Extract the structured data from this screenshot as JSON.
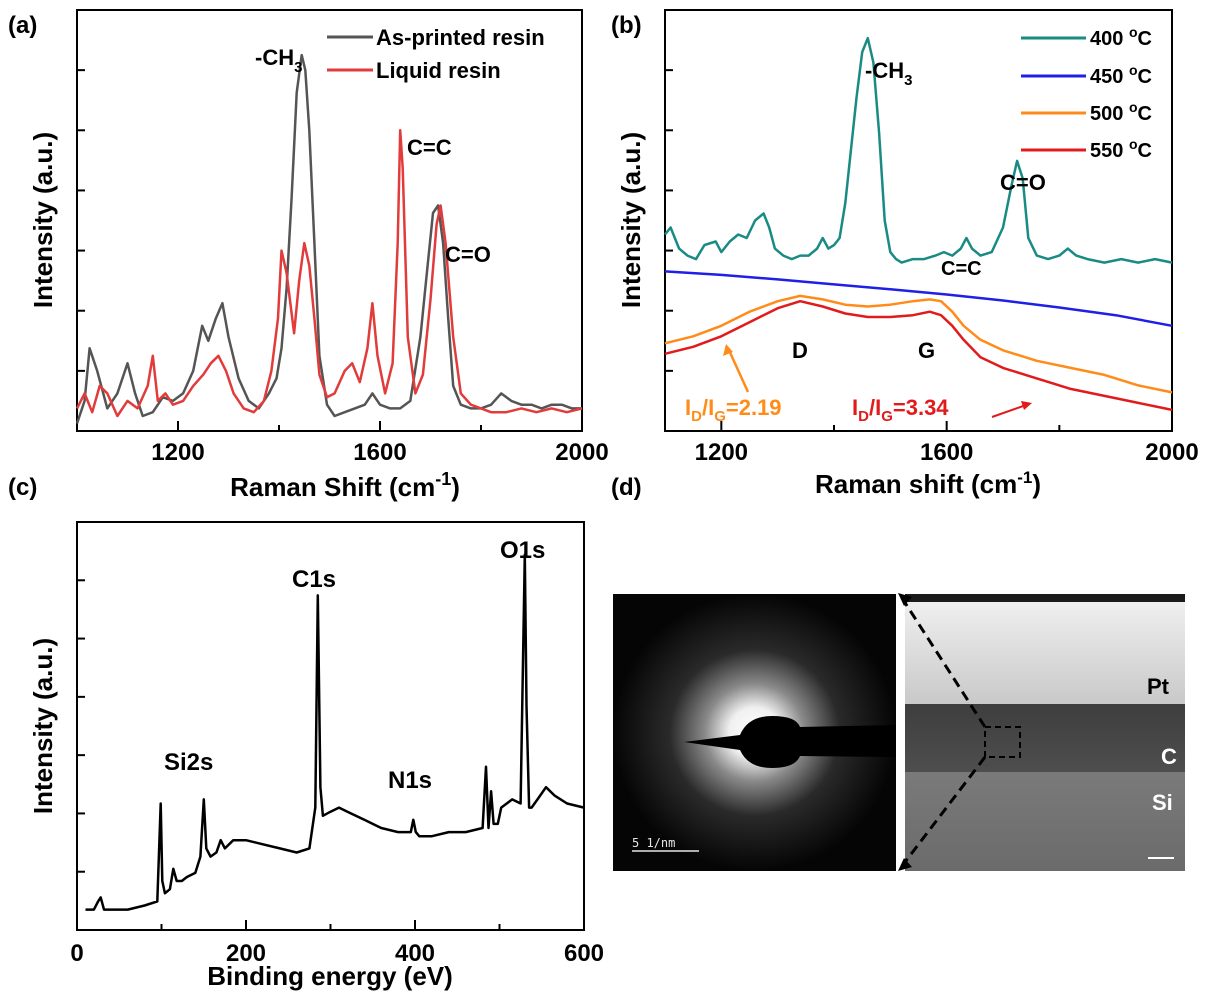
{
  "panels": {
    "a": "(a)",
    "b": "(b)",
    "c": "(c)",
    "d": "(d)"
  },
  "chart_data": [
    {
      "id": "a",
      "type": "line",
      "xlabel": "Raman Shift (cm",
      "xlabel_sup": "-1",
      "xlabel_end": ")",
      "ylabel": "Intensity (a.u.)",
      "xlim": [
        1000,
        2000
      ],
      "ylim": [
        0,
        1.12
      ],
      "xticks": [
        1200,
        1600,
        2000
      ],
      "xtick_labels": [
        "1200",
        "1600",
        "2000"
      ],
      "legend_position": "top-right",
      "series": [
        {
          "name": "As-printed resin",
          "color": "#555555",
          "x": [
            1000,
            1015,
            1025,
            1040,
            1060,
            1080,
            1100,
            1115,
            1130,
            1150,
            1170,
            1190,
            1210,
            1230,
            1248,
            1260,
            1275,
            1288,
            1300,
            1320,
            1340,
            1360,
            1380,
            1395,
            1405,
            1415,
            1425,
            1435,
            1445,
            1452,
            1460,
            1470,
            1480,
            1495,
            1510,
            1530,
            1550,
            1570,
            1585,
            1600,
            1620,
            1640,
            1660,
            1680,
            1695,
            1705,
            1715,
            1725,
            1735,
            1745,
            1760,
            1780,
            1800,
            1820,
            1840,
            1860,
            1880,
            1900,
            1920,
            1940,
            1960,
            1980,
            2000
          ],
          "y": [
            0.02,
            0.08,
            0.22,
            0.16,
            0.06,
            0.1,
            0.18,
            0.1,
            0.04,
            0.05,
            0.09,
            0.08,
            0.1,
            0.16,
            0.28,
            0.24,
            0.3,
            0.34,
            0.25,
            0.14,
            0.08,
            0.06,
            0.1,
            0.14,
            0.22,
            0.38,
            0.62,
            0.9,
            1.0,
            0.96,
            0.8,
            0.5,
            0.2,
            0.07,
            0.04,
            0.05,
            0.06,
            0.07,
            0.1,
            0.07,
            0.06,
            0.06,
            0.08,
            0.25,
            0.45,
            0.58,
            0.6,
            0.5,
            0.3,
            0.12,
            0.07,
            0.06,
            0.06,
            0.07,
            0.1,
            0.08,
            0.07,
            0.07,
            0.06,
            0.07,
            0.07,
            0.06,
            0.06
          ]
        },
        {
          "name": "Liquid resin",
          "color": "#e23b3b",
          "x": [
            1000,
            1015,
            1030,
            1045,
            1060,
            1080,
            1100,
            1120,
            1140,
            1150,
            1160,
            1175,
            1190,
            1210,
            1230,
            1250,
            1265,
            1280,
            1295,
            1310,
            1330,
            1350,
            1370,
            1385,
            1398,
            1405,
            1415,
            1430,
            1440,
            1450,
            1460,
            1470,
            1480,
            1495,
            1510,
            1530,
            1545,
            1560,
            1575,
            1585,
            1595,
            1610,
            1625,
            1635,
            1640,
            1645,
            1655,
            1670,
            1685,
            1700,
            1712,
            1720,
            1730,
            1745,
            1760,
            1780,
            1800,
            1820,
            1850,
            1880,
            1910,
            1940,
            1970,
            2000
          ],
          "y": [
            0.06,
            0.1,
            0.05,
            0.12,
            0.1,
            0.04,
            0.08,
            0.06,
            0.12,
            0.2,
            0.08,
            0.1,
            0.07,
            0.08,
            0.12,
            0.15,
            0.18,
            0.2,
            0.16,
            0.1,
            0.06,
            0.05,
            0.08,
            0.16,
            0.3,
            0.48,
            0.42,
            0.26,
            0.4,
            0.5,
            0.44,
            0.3,
            0.15,
            0.09,
            0.1,
            0.16,
            0.18,
            0.13,
            0.22,
            0.34,
            0.2,
            0.1,
            0.18,
            0.5,
            0.8,
            0.7,
            0.25,
            0.1,
            0.15,
            0.35,
            0.55,
            0.6,
            0.5,
            0.25,
            0.1,
            0.07,
            0.06,
            0.05,
            0.05,
            0.06,
            0.05,
            0.06,
            0.05,
            0.06
          ]
        }
      ],
      "annotations": [
        "-CH",
        "3",
        "C=C",
        "C=O"
      ]
    },
    {
      "id": "b",
      "type": "line",
      "xlabel": "Raman shift (cm",
      "xlabel_sup": "-1",
      "xlabel_end": ")",
      "ylabel": "Intensity (a.u.)",
      "xlim": [
        1100,
        2000
      ],
      "ylim": [
        0,
        1.2
      ],
      "xticks": [
        1200,
        1600,
        2000
      ],
      "xtick_labels": [
        "1200",
        "1600",
        "2000"
      ],
      "legend_position": "top-right",
      "series": [
        {
          "name": "400 ",
          "unit": "oC",
          "color": "#1a8a85",
          "x": [
            1100,
            1110,
            1125,
            1140,
            1155,
            1170,
            1190,
            1200,
            1215,
            1230,
            1245,
            1260,
            1275,
            1285,
            1295,
            1310,
            1325,
            1340,
            1355,
            1370,
            1380,
            1390,
            1400,
            1410,
            1420,
            1430,
            1440,
            1450,
            1460,
            1470,
            1480,
            1490,
            1500,
            1510,
            1520,
            1540,
            1560,
            1580,
            1595,
            1610,
            1625,
            1635,
            1645,
            1660,
            1680,
            1700,
            1715,
            1725,
            1735,
            1745,
            1760,
            1780,
            1800,
            1815,
            1830,
            1850,
            1880,
            1910,
            1940,
            1970,
            2000
          ],
          "y": [
            0.56,
            0.58,
            0.52,
            0.5,
            0.49,
            0.53,
            0.54,
            0.51,
            0.54,
            0.56,
            0.55,
            0.6,
            0.62,
            0.58,
            0.52,
            0.5,
            0.49,
            0.5,
            0.5,
            0.52,
            0.55,
            0.52,
            0.53,
            0.55,
            0.65,
            0.8,
            0.95,
            1.08,
            1.12,
            1.05,
            0.85,
            0.6,
            0.51,
            0.49,
            0.48,
            0.49,
            0.49,
            0.5,
            0.51,
            0.5,
            0.52,
            0.55,
            0.52,
            0.5,
            0.51,
            0.58,
            0.7,
            0.77,
            0.72,
            0.55,
            0.5,
            0.49,
            0.5,
            0.52,
            0.5,
            0.49,
            0.48,
            0.49,
            0.48,
            0.49,
            0.48
          ]
        },
        {
          "name": "450 ",
          "unit": "oC",
          "color": "#1f1fe6",
          "x": [
            1100,
            1200,
            1300,
            1400,
            1500,
            1600,
            1700,
            1800,
            1900,
            2000
          ],
          "y": [
            0.455,
            0.445,
            0.432,
            0.418,
            0.404,
            0.389,
            0.372,
            0.352,
            0.33,
            0.3
          ]
        },
        {
          "name": "500 ",
          "unit": "oC",
          "color": "#ff8c1a",
          "x": [
            1100,
            1150,
            1200,
            1250,
            1300,
            1340,
            1380,
            1420,
            1460,
            1500,
            1540,
            1570,
            1590,
            1610,
            1630,
            1660,
            1700,
            1760,
            1820,
            1880,
            1940,
            2000
          ],
          "y": [
            0.25,
            0.27,
            0.3,
            0.34,
            0.37,
            0.385,
            0.375,
            0.36,
            0.355,
            0.36,
            0.37,
            0.375,
            0.37,
            0.34,
            0.3,
            0.26,
            0.23,
            0.2,
            0.18,
            0.16,
            0.13,
            0.11
          ]
        },
        {
          "name": "550 ",
          "unit": "oC",
          "color": "#e11b1b",
          "x": [
            1100,
            1150,
            1200,
            1250,
            1300,
            1340,
            1380,
            1420,
            1460,
            1500,
            1540,
            1570,
            1590,
            1610,
            1630,
            1660,
            1700,
            1760,
            1820,
            1880,
            1940,
            2000
          ],
          "y": [
            0.22,
            0.24,
            0.27,
            0.31,
            0.35,
            0.37,
            0.355,
            0.335,
            0.325,
            0.325,
            0.33,
            0.34,
            0.33,
            0.3,
            0.26,
            0.21,
            0.18,
            0.15,
            0.12,
            0.1,
            0.08,
            0.06
          ]
        }
      ],
      "annotations": [
        "-CH",
        "3",
        "C=C",
        "C=O",
        "D",
        "G"
      ],
      "ratio_labels": {
        "r500": {
          "I": "I",
          "D": "D",
          "slash": "/I",
          "G": "G",
          "value": "=2.19",
          "color": "#ff8c1a"
        },
        "r550": {
          "I": "I",
          "D": "D",
          "slash": "/I",
          "G": "G",
          "value": "=3.34",
          "color": "#e11b1b"
        }
      }
    },
    {
      "id": "c",
      "type": "line",
      "xlabel": "Binding energy (eV)",
      "ylabel": "Intensity (a.u.)",
      "xlim": [
        0,
        600
      ],
      "ylim": [
        0,
        1.0
      ],
      "xticks": [
        0,
        200,
        400,
        600
      ],
      "xtick_labels": [
        "0",
        "200",
        "400",
        "600"
      ],
      "series": [
        {
          "name": "",
          "color": "#000000",
          "x": [
            10,
            20,
            25,
            28,
            32,
            40,
            60,
            80,
            95,
            99,
            101,
            104,
            110,
            114,
            118,
            124,
            130,
            140,
            146,
            150,
            153,
            158,
            165,
            170,
            175,
            185,
            200,
            220,
            240,
            260,
            275,
            282,
            285,
            288,
            291,
            300,
            310,
            320,
            340,
            360,
            380,
            395,
            398,
            401,
            405,
            420,
            440,
            460,
            480,
            484,
            487,
            490,
            493,
            495,
            498,
            502,
            515,
            525,
            530,
            532,
            535,
            538,
            545,
            555,
            565,
            580,
            600
          ],
          "y": [
            0.05,
            0.05,
            0.07,
            0.08,
            0.05,
            0.05,
            0.05,
            0.06,
            0.07,
            0.31,
            0.12,
            0.09,
            0.1,
            0.15,
            0.12,
            0.12,
            0.13,
            0.14,
            0.18,
            0.32,
            0.2,
            0.18,
            0.19,
            0.22,
            0.2,
            0.22,
            0.22,
            0.21,
            0.2,
            0.19,
            0.2,
            0.3,
            0.82,
            0.35,
            0.28,
            0.29,
            0.3,
            0.29,
            0.27,
            0.25,
            0.24,
            0.24,
            0.27,
            0.24,
            0.23,
            0.23,
            0.24,
            0.24,
            0.25,
            0.4,
            0.25,
            0.34,
            0.26,
            0.26,
            0.26,
            0.3,
            0.32,
            0.31,
            0.92,
            0.55,
            0.3,
            0.3,
            0.32,
            0.35,
            0.33,
            0.31,
            0.3
          ]
        }
      ],
      "annotations": [
        "C1s",
        "O1s",
        "Si2s",
        "N1s"
      ]
    }
  ],
  "micrograph": {
    "diffraction_scale": "5 1/nm",
    "layers": [
      "Pt",
      "C",
      "Si"
    ]
  }
}
